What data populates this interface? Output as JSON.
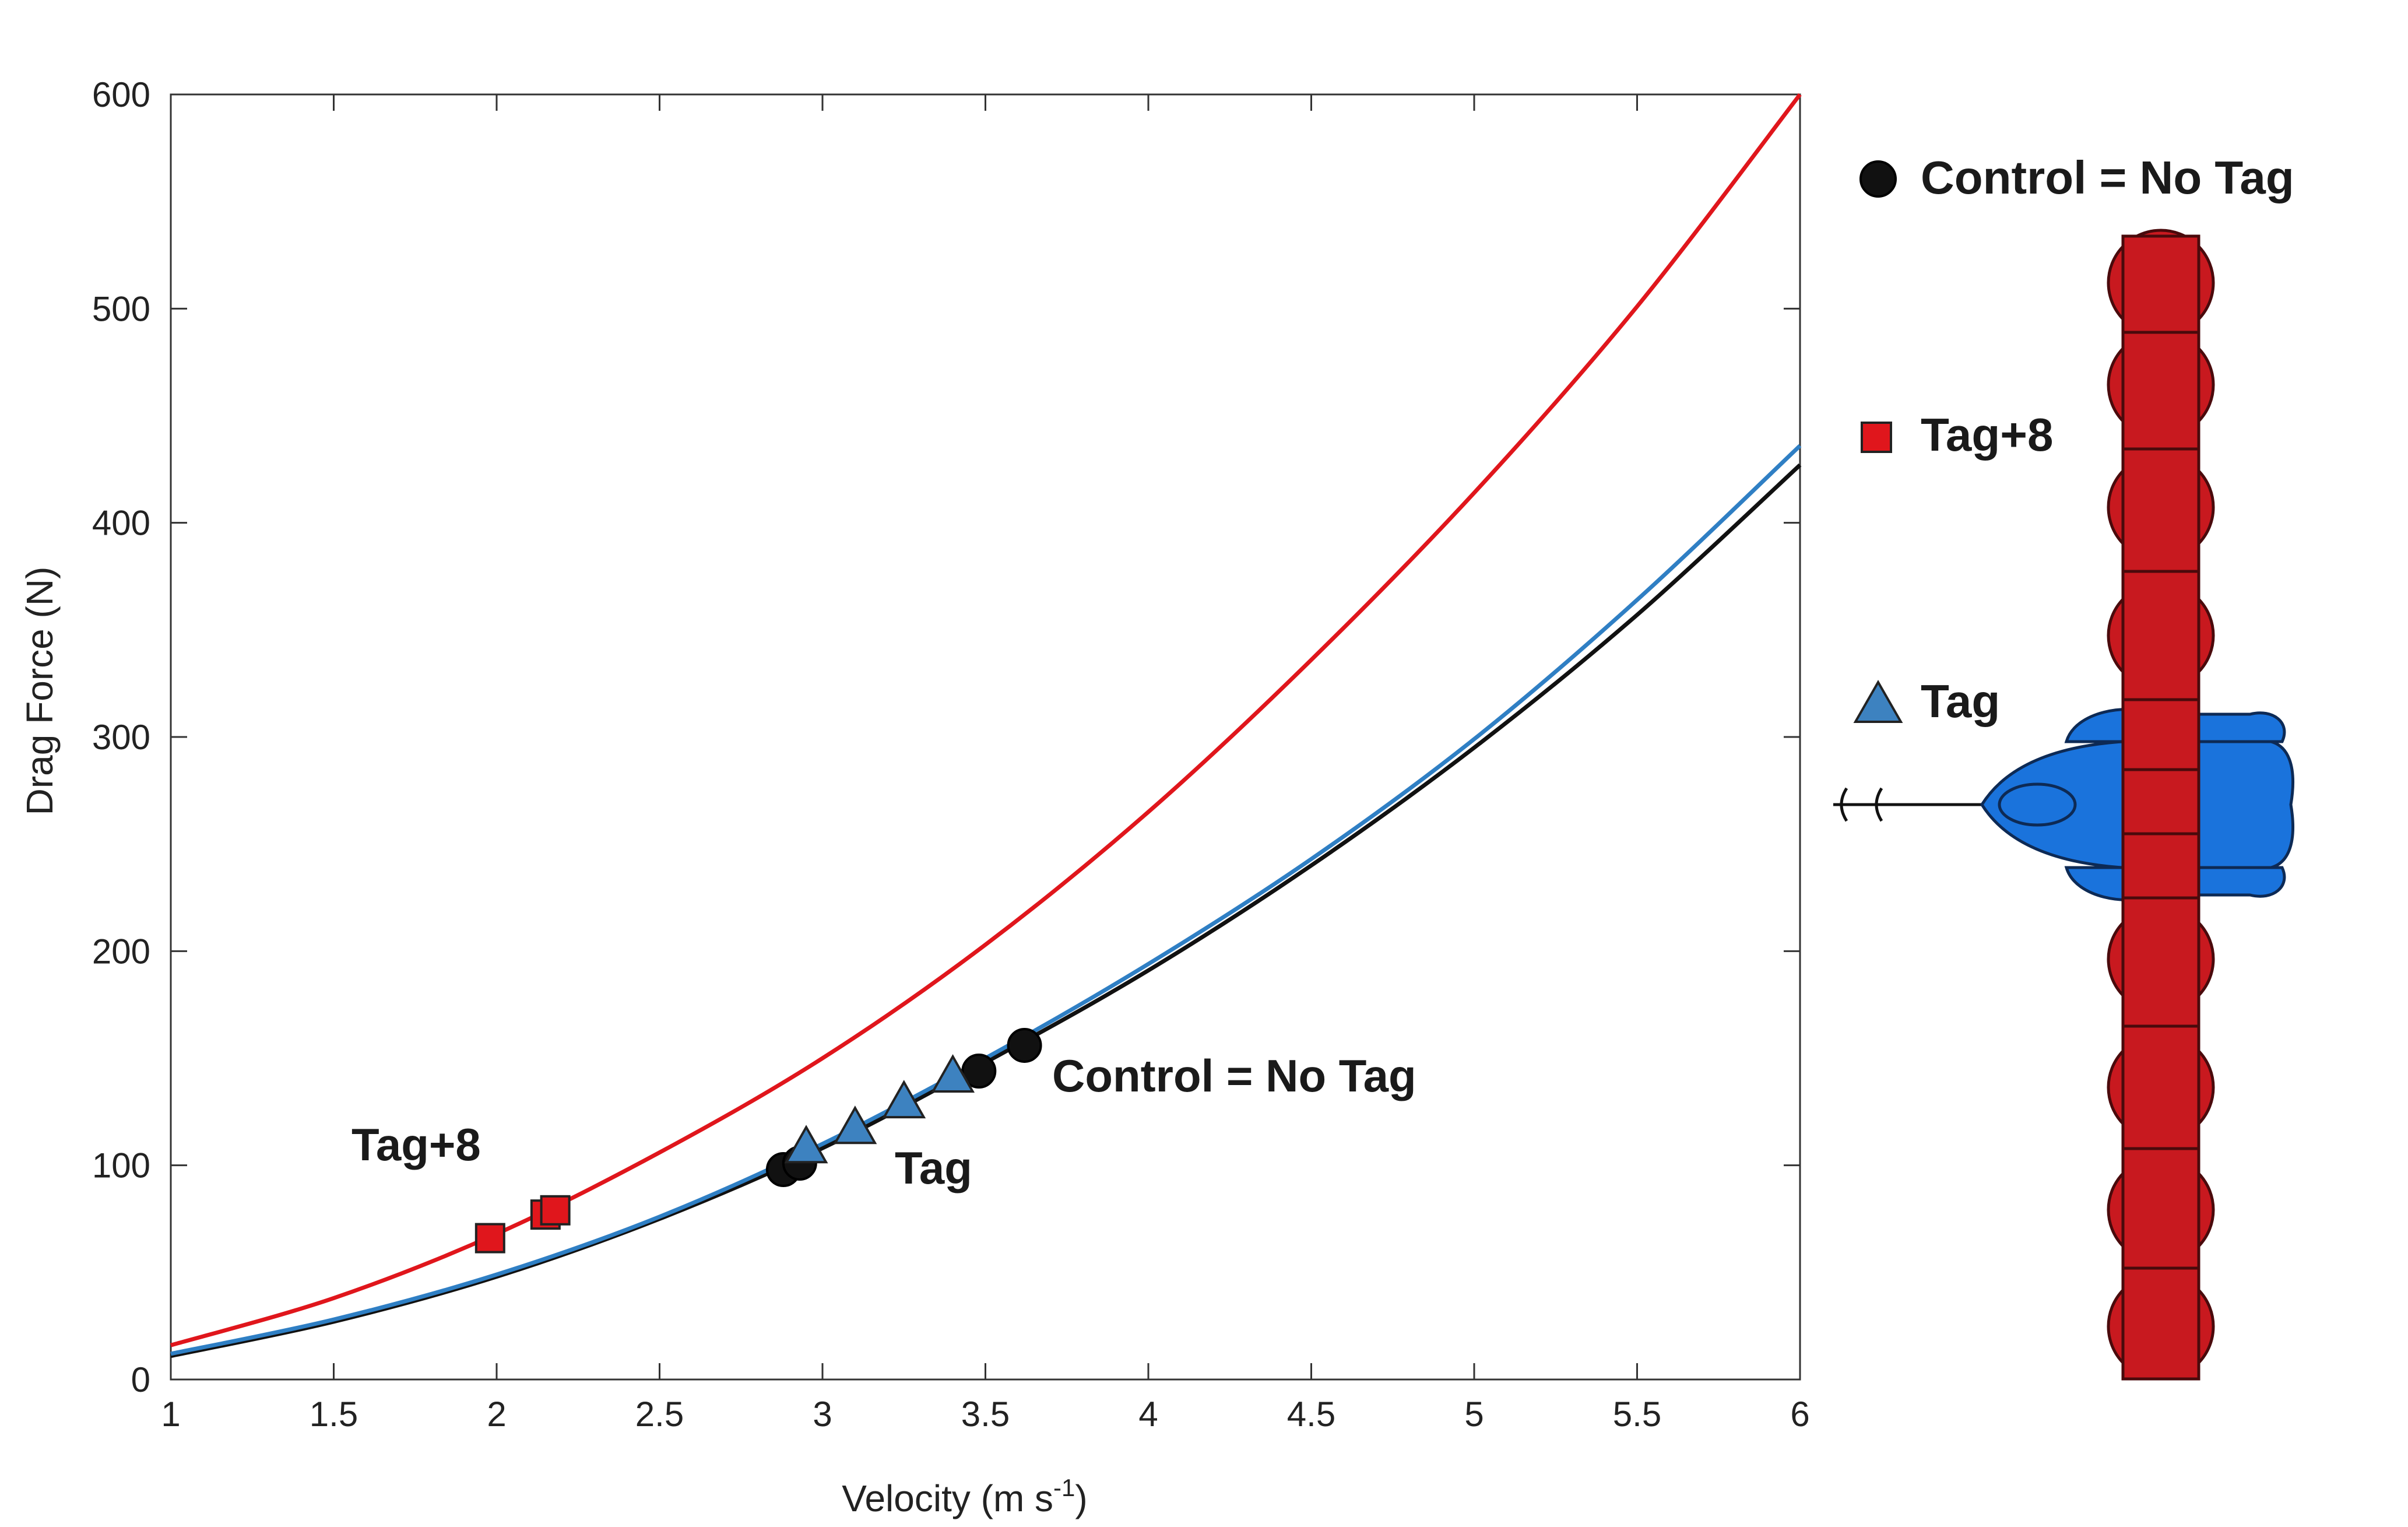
{
  "chart_data": {
    "type": "line",
    "xlabel": "Velocity (m s",
    "xlabel_sup": "-1",
    "xlabel_end": ")",
    "ylabel": "Drag Force (N)",
    "xlim": [
      1,
      6
    ],
    "ylim": [
      0,
      600
    ],
    "x_ticks": [
      "1",
      "1.5",
      "2",
      "2.5",
      "3",
      "3.5",
      "4",
      "4.5",
      "5",
      "5.5",
      "6"
    ],
    "y_ticks": [
      "0",
      "100",
      "200",
      "300",
      "400",
      "500",
      "600"
    ],
    "grid": false,
    "legend_position": "right",
    "colors": {
      "tag8": "#e0161c",
      "tag": "#2f7fc4",
      "control": "#111111",
      "tag_marker": "#3d82c0"
    },
    "series": [
      {
        "name": "Tag+8",
        "curve": {
          "x": [
            1,
            1.5,
            2,
            2.5,
            3,
            3.5,
            4,
            4.5,
            5,
            5.5,
            6
          ],
          "y": [
            16,
            38,
            68,
            106,
            150,
            203,
            265,
            336,
            414,
            501,
            600
          ]
        },
        "points": [
          {
            "x": 1.98,
            "y": 66
          },
          {
            "x": 2.15,
            "y": 77
          },
          {
            "x": 2.18,
            "y": 79
          }
        ]
      },
      {
        "name": "Tag",
        "curve": {
          "x": [
            1,
            1.5,
            2,
            2.5,
            3,
            3.5,
            4,
            4.5,
            5,
            5.5,
            6
          ],
          "y": [
            12,
            28,
            49,
            76,
            110,
            150,
            194,
            243,
            299,
            364,
            436
          ]
        },
        "points": [
          {
            "x": 2.95,
            "y": 108
          },
          {
            "x": 3.1,
            "y": 117
          },
          {
            "x": 3.25,
            "y": 129
          },
          {
            "x": 3.4,
            "y": 141
          }
        ]
      },
      {
        "name": "Control = No Tag",
        "curve": {
          "x": [
            1,
            1.5,
            2,
            2.5,
            3,
            3.5,
            4,
            4.5,
            5,
            5.5,
            6
          ],
          "y": [
            11,
            27,
            48,
            75,
            108,
            148,
            191,
            240,
            295,
            357,
            427
          ]
        },
        "points": [
          {
            "x": 2.88,
            "y": 98
          },
          {
            "x": 2.93,
            "y": 101
          },
          {
            "x": 3.48,
            "y": 144
          },
          {
            "x": 3.62,
            "y": 156
          }
        ]
      }
    ],
    "annotations": [
      "Tag+8",
      "Tag",
      "Control = No Tag"
    ],
    "legend": [
      {
        "label": "Control = No Tag",
        "marker": "circle"
      },
      {
        "label": "Tag+8",
        "marker": "square"
      },
      {
        "label": "Tag",
        "marker": "triangle"
      }
    ]
  }
}
